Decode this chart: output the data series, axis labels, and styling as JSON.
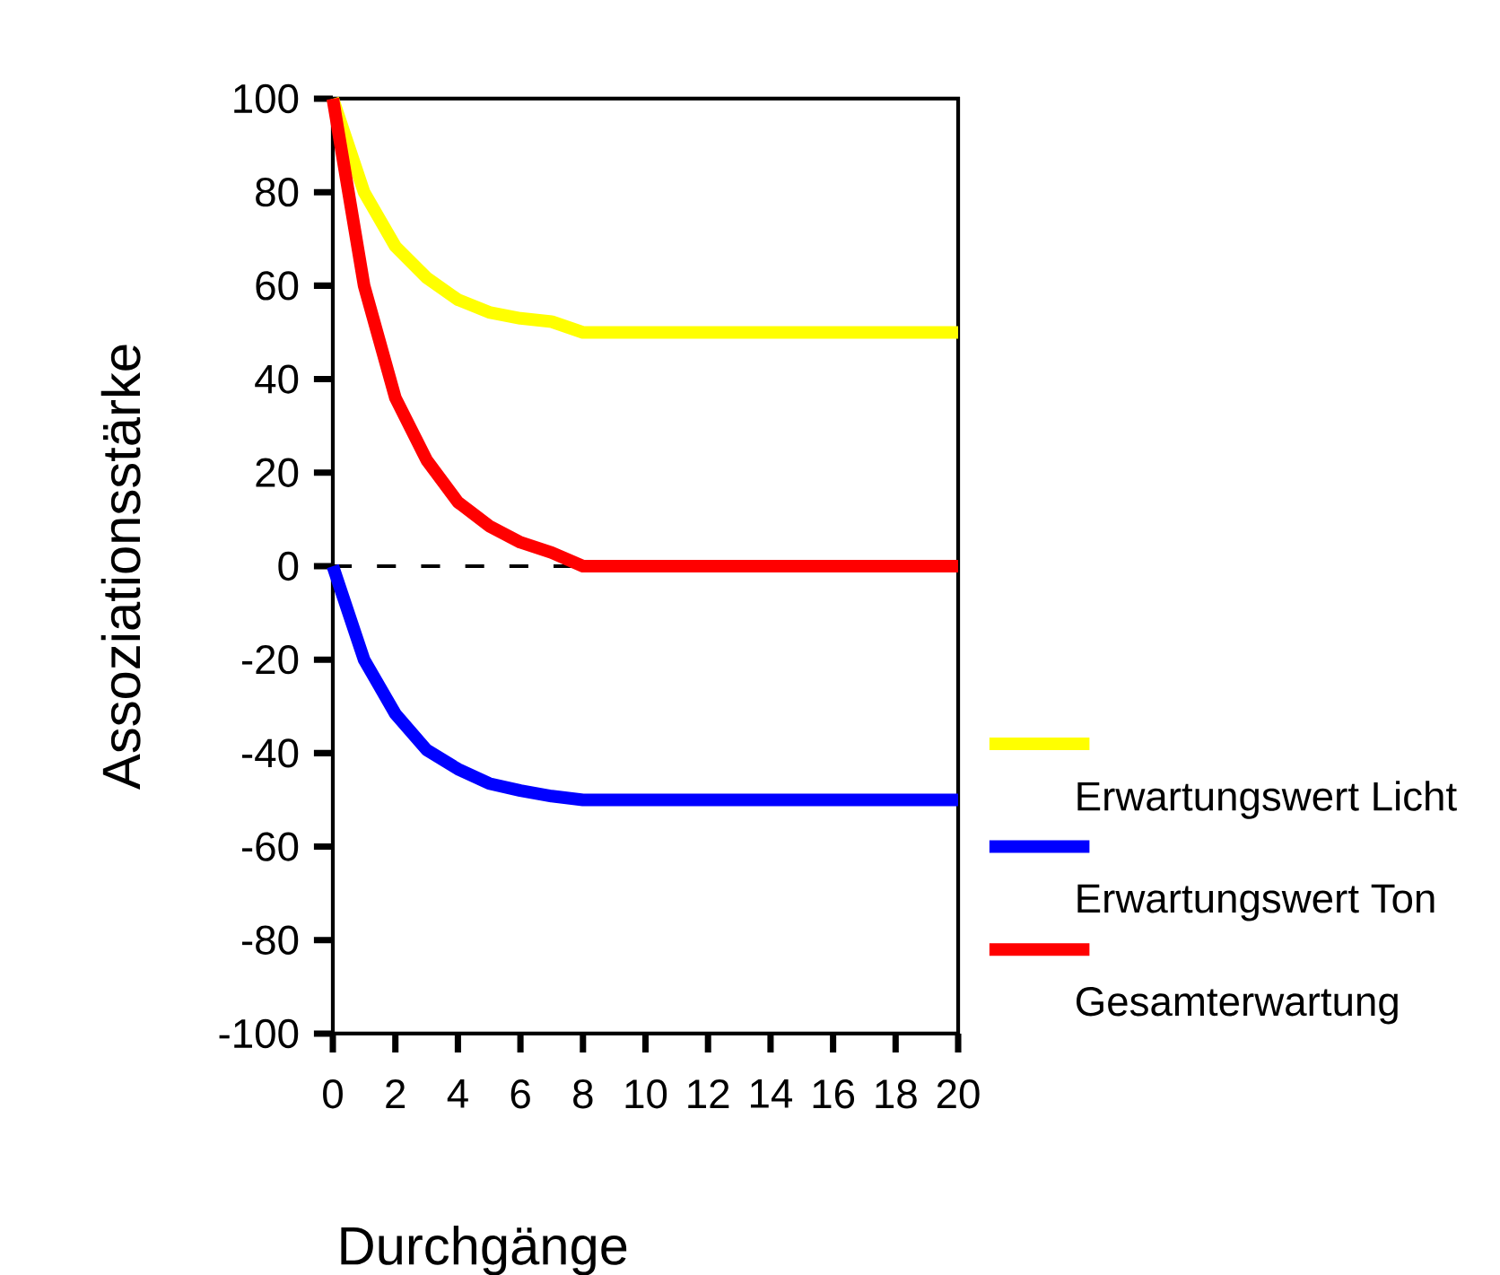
{
  "chart_data": {
    "type": "line",
    "xlabel": "Durchgänge",
    "ylabel": "Assoziationsstärke",
    "xlim": [
      0,
      20
    ],
    "ylim": [
      -100,
      100
    ],
    "xticks": [
      0,
      2,
      4,
      6,
      8,
      10,
      12,
      14,
      16,
      18,
      20
    ],
    "yticks": [
      -100,
      -80,
      -60,
      -40,
      -20,
      0,
      20,
      40,
      60,
      80,
      100
    ],
    "grid": false,
    "legend": "right",
    "line_style": "solid",
    "marker": "none",
    "x": [
      0,
      1,
      2,
      3,
      4,
      5,
      6,
      7,
      8,
      20
    ],
    "series": [
      {
        "name": "Erwartungswert Licht",
        "color": "#ffff00",
        "values": [
          100,
          80,
          68.4,
          61.7,
          57,
          54.3,
          53,
          52.3,
          50,
          50
        ]
      },
      {
        "name": "Erwartungswert Ton",
        "color": "#0000ff",
        "values": [
          0,
          -20,
          -31.6,
          -39.3,
          -43.4,
          -46.5,
          -48,
          -49.2,
          -50,
          -50
        ]
      },
      {
        "name": "Gesamterwartung",
        "color": "#ff0000",
        "values": [
          100,
          60,
          36,
          22.7,
          13.7,
          8.6,
          5.1,
          2.9,
          0,
          0
        ]
      }
    ],
    "ref_lines": [
      {
        "axis": "y",
        "value": 0,
        "color": "#000000",
        "line_style": "dashed"
      }
    ]
  }
}
